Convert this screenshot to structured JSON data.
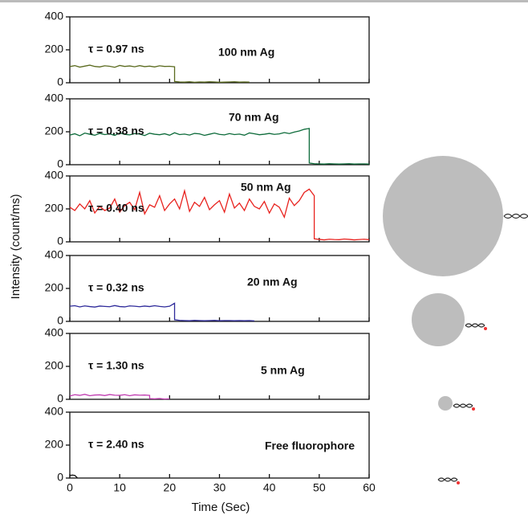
{
  "chart_data": [
    {
      "type": "line",
      "annotation": "τ = 0.97 ns",
      "label": "100 nm Ag",
      "y_label": "Intensity (count/ms)",
      "xlim": [
        0,
        60
      ],
      "ylim": [
        0,
        400
      ],
      "yticks": [
        0,
        200,
        400
      ],
      "series": [
        {
          "color": "#5b6b1f",
          "x": [
            0,
            1,
            2,
            3,
            4,
            5,
            6,
            7,
            8,
            9,
            10,
            11,
            12,
            13,
            14,
            15,
            16,
            17,
            18,
            19,
            20,
            21,
            21,
            22,
            23,
            24,
            25,
            26,
            27,
            28,
            29,
            30,
            31,
            32,
            33,
            34,
            35,
            36
          ],
          "values": [
            98,
            104,
            95,
            101,
            107,
            99,
            96,
            103,
            100,
            94,
            105,
            99,
            102,
            97,
            104,
            98,
            101,
            96,
            103,
            99,
            100,
            97,
            8,
            5,
            4,
            6,
            3,
            5,
            4,
            6,
            5,
            3,
            4,
            5,
            6,
            4,
            5,
            4
          ]
        }
      ]
    },
    {
      "type": "line",
      "annotation": "τ = 0.38 ns",
      "label": "70 nm Ag",
      "xlim": [
        0,
        60
      ],
      "ylim": [
        0,
        400
      ],
      "yticks": [
        0,
        200,
        400
      ],
      "series": [
        {
          "color": "#0d6b3a",
          "x": [
            0,
            1,
            2,
            3,
            4,
            5,
            6,
            7,
            8,
            9,
            10,
            11,
            12,
            13,
            14,
            15,
            16,
            17,
            18,
            19,
            20,
            21,
            22,
            23,
            24,
            25,
            26,
            27,
            28,
            29,
            30,
            31,
            32,
            33,
            34,
            35,
            36,
            37,
            38,
            39,
            40,
            41,
            42,
            43,
            44,
            45,
            46,
            47,
            48,
            48,
            49,
            50,
            51,
            52,
            53,
            54,
            55,
            56,
            57,
            58,
            59,
            60
          ],
          "values": [
            180,
            188,
            176,
            192,
            185,
            179,
            190,
            183,
            187,
            178,
            193,
            184,
            181,
            189,
            186,
            177,
            191,
            185,
            182,
            188,
            179,
            194,
            183,
            186,
            180,
            190,
            187,
            178,
            185,
            192,
            184,
            181,
            189,
            183,
            186,
            179,
            193,
            188,
            182,
            185,
            190,
            184,
            187,
            195,
            189,
            198,
            205,
            215,
            220,
            10,
            6,
            5,
            4,
            6,
            5,
            4,
            5,
            6,
            4,
            5,
            5,
            4
          ]
        }
      ]
    },
    {
      "type": "line",
      "annotation": "τ = 0.40 ns",
      "label": "50 nm Ag",
      "xlim": [
        0,
        60
      ],
      "ylim": [
        0,
        400
      ],
      "yticks": [
        0,
        200,
        400
      ],
      "series": [
        {
          "color": "#e8231f",
          "x": [
            0,
            1,
            2,
            3,
            4,
            5,
            6,
            7,
            8,
            9,
            10,
            11,
            12,
            13,
            14,
            15,
            16,
            17,
            18,
            19,
            20,
            21,
            22,
            23,
            24,
            25,
            26,
            27,
            28,
            29,
            30,
            31,
            32,
            33,
            34,
            35,
            36,
            37,
            38,
            39,
            40,
            41,
            42,
            43,
            44,
            45,
            46,
            47,
            48,
            49,
            49,
            50,
            51,
            52,
            53,
            54,
            55,
            56,
            57,
            58,
            59,
            60
          ],
          "values": [
            210,
            190,
            230,
            200,
            250,
            175,
            215,
            190,
            205,
            260,
            180,
            220,
            240,
            195,
            300,
            170,
            225,
            210,
            280,
            190,
            230,
            260,
            200,
            310,
            185,
            240,
            215,
            270,
            195,
            225,
            250,
            180,
            290,
            205,
            235,
            190,
            260,
            215,
            200,
            245,
            175,
            230,
            210,
            150,
            265,
            220,
            250,
            300,
            320,
            280,
            18,
            15,
            12,
            16,
            14,
            13,
            17,
            15,
            12,
            14,
            16,
            13
          ]
        }
      ]
    },
    {
      "type": "line",
      "annotation": "τ = 0.32 ns",
      "label": "20 nm Ag",
      "xlim": [
        0,
        60
      ],
      "ylim": [
        0,
        400
      ],
      "yticks": [
        0,
        200,
        400
      ],
      "series": [
        {
          "color": "#2e2a9a",
          "x": [
            0,
            1,
            2,
            3,
            4,
            5,
            6,
            7,
            8,
            9,
            10,
            11,
            12,
            13,
            14,
            15,
            16,
            17,
            18,
            19,
            20,
            21,
            21,
            22,
            23,
            24,
            25,
            26,
            27,
            28,
            29,
            30,
            31,
            32,
            33,
            34,
            35,
            36,
            37
          ],
          "values": [
            92,
            95,
            88,
            94,
            90,
            87,
            93,
            91,
            89,
            96,
            90,
            88,
            94,
            92,
            89,
            93,
            90,
            95,
            91,
            88,
            92,
            110,
            10,
            6,
            5,
            4,
            6,
            5,
            4,
            5,
            6,
            4,
            5,
            5,
            4,
            5,
            4,
            5,
            3
          ]
        }
      ]
    },
    {
      "type": "line",
      "annotation": "τ = 1.30 ns",
      "label": "5 nm Ag",
      "xlim": [
        0,
        60
      ],
      "ylim": [
        0,
        400
      ],
      "yticks": [
        0,
        200,
        400
      ],
      "series": [
        {
          "color": "#c03cb0",
          "x": [
            0,
            1,
            2,
            3,
            4,
            5,
            6,
            7,
            8,
            9,
            10,
            11,
            12,
            13,
            14,
            15,
            16,
            16,
            17,
            18,
            19,
            20
          ],
          "values": [
            20,
            28,
            24,
            30,
            22,
            26,
            27,
            23,
            29,
            25,
            24,
            28,
            22,
            27,
            25,
            26,
            24,
            4,
            3,
            5,
            2,
            3
          ]
        }
      ]
    },
    {
      "type": "line",
      "annotation": "τ = 2.40 ns",
      "label": "Free fluorophore",
      "x_label": "Time (Sec)",
      "xlim": [
        0,
        60
      ],
      "ylim": [
        0,
        400
      ],
      "yticks": [
        0,
        200,
        400
      ],
      "xticks": [
        0,
        10,
        20,
        30,
        40,
        50,
        60
      ],
      "series": [
        {
          "color": "#111111",
          "x": [
            0,
            0.5,
            1,
            1.5
          ],
          "values": [
            15,
            18,
            16,
            2
          ]
        }
      ]
    }
  ]
}
